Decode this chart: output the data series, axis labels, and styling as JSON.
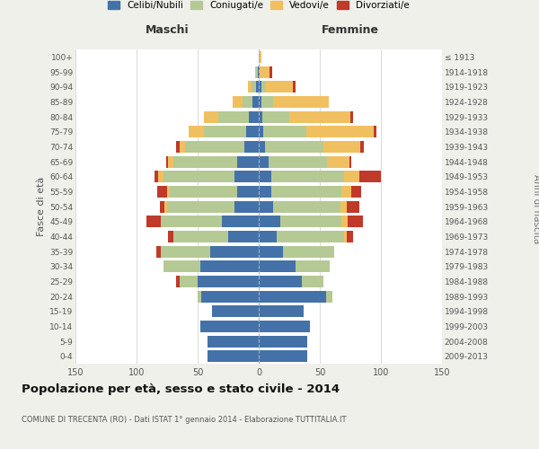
{
  "age_groups_bottom_to_top": [
    "0-4",
    "5-9",
    "10-14",
    "15-19",
    "20-24",
    "25-29",
    "30-34",
    "35-39",
    "40-44",
    "45-49",
    "50-54",
    "55-59",
    "60-64",
    "65-69",
    "70-74",
    "75-79",
    "80-84",
    "85-89",
    "90-94",
    "95-99",
    "100+"
  ],
  "birth_years_bottom_to_top": [
    "2009-2013",
    "2004-2008",
    "1999-2003",
    "1994-1998",
    "1989-1993",
    "1984-1988",
    "1979-1983",
    "1974-1978",
    "1969-1973",
    "1964-1968",
    "1959-1963",
    "1954-1958",
    "1949-1953",
    "1944-1948",
    "1939-1943",
    "1934-1938",
    "1929-1933",
    "1924-1928",
    "1919-1923",
    "1914-1918",
    "≤ 1913"
  ],
  "maschi": {
    "celibi": [
      42,
      42,
      48,
      38,
      47,
      50,
      48,
      40,
      25,
      30,
      20,
      18,
      20,
      18,
      12,
      10,
      8,
      5,
      2,
      1,
      0
    ],
    "coniugati": [
      0,
      0,
      0,
      0,
      3,
      15,
      30,
      40,
      45,
      50,
      55,
      55,
      58,
      52,
      48,
      35,
      25,
      8,
      4,
      1,
      0
    ],
    "vedovi": [
      0,
      0,
      0,
      0,
      0,
      0,
      0,
      0,
      0,
      0,
      2,
      2,
      4,
      4,
      5,
      12,
      12,
      8,
      3,
      1,
      0
    ],
    "divorziati": [
      0,
      0,
      0,
      0,
      0,
      3,
      0,
      4,
      4,
      12,
      4,
      8,
      3,
      2,
      3,
      0,
      0,
      0,
      0,
      0,
      0
    ]
  },
  "femmine": {
    "nubili": [
      40,
      40,
      42,
      37,
      55,
      35,
      30,
      20,
      15,
      18,
      12,
      10,
      10,
      8,
      5,
      4,
      3,
      2,
      2,
      1,
      0
    ],
    "coniugate": [
      0,
      0,
      0,
      0,
      5,
      18,
      28,
      42,
      55,
      50,
      55,
      58,
      60,
      48,
      48,
      35,
      22,
      10,
      4,
      0,
      0
    ],
    "vedove": [
      0,
      0,
      0,
      0,
      0,
      0,
      0,
      0,
      2,
      5,
      5,
      8,
      12,
      18,
      30,
      55,
      50,
      45,
      22,
      8,
      2
    ],
    "divorziate": [
      0,
      0,
      0,
      0,
      0,
      0,
      0,
      0,
      5,
      12,
      10,
      8,
      18,
      2,
      3,
      2,
      2,
      0,
      2,
      2,
      0
    ]
  },
  "colors": {
    "celibi": "#4472a8",
    "coniugati": "#b5c994",
    "vedovi": "#f0c060",
    "divorziati": "#c0392b"
  },
  "xlim": 150,
  "title": "Popolazione per età, sesso e stato civile - 2014",
  "subtitle": "COMUNE DI TRECENTA (RO) - Dati ISTAT 1° gennaio 2014 - Elaborazione TUTTITALIA.IT",
  "ylabel_left": "Fasce di età",
  "ylabel_right": "Anni di nascita",
  "xlabel_maschi": "Maschi",
  "xlabel_femmine": "Femmine",
  "bg_color": "#f0f0eb",
  "plot_bg": "#ffffff"
}
